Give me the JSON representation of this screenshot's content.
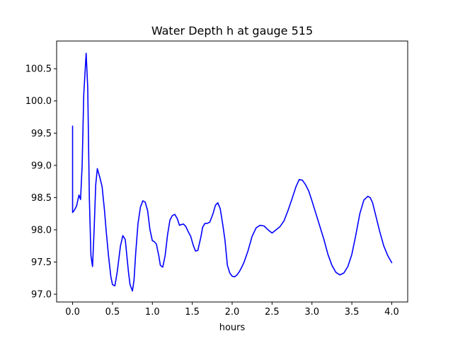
{
  "chart_data": {
    "type": "line",
    "title": "Water Depth h at gauge 515",
    "xlabel": "hours",
    "ylabel": "",
    "xlim": [
      -0.2,
      4.2
    ],
    "ylim": [
      96.88,
      100.93
    ],
    "grid": false,
    "legend": "none",
    "x_ticks": [
      0.0,
      0.5,
      1.0,
      1.5,
      2.0,
      2.5,
      3.0,
      3.5,
      4.0
    ],
    "x_tick_labels": [
      "0.0",
      "0.5",
      "1.0",
      "1.5",
      "2.0",
      "2.5",
      "3.0",
      "3.5",
      "4.0"
    ],
    "y_ticks": [
      97.0,
      97.5,
      98.0,
      98.5,
      99.0,
      99.5,
      100.0,
      100.5
    ],
    "y_tick_labels": [
      "97.0",
      "97.5",
      "98.0",
      "98.5",
      "99.0",
      "99.5",
      "100.0",
      "100.5"
    ],
    "colors": {
      "line": "#0000ff",
      "axes": "#000000",
      "background": "#ffffff"
    },
    "series": [
      {
        "x": [
          0.0,
          0.0,
          0.02,
          0.05,
          0.08,
          0.1,
          0.12,
          0.14,
          0.17,
          0.19,
          0.21,
          0.23,
          0.25,
          0.27,
          0.29,
          0.31,
          0.34,
          0.37,
          0.4,
          0.42,
          0.45,
          0.48,
          0.5,
          0.53,
          0.56,
          0.6,
          0.63,
          0.66,
          0.68,
          0.7,
          0.72,
          0.75,
          0.77,
          0.79,
          0.82,
          0.85,
          0.88,
          0.91,
          0.94,
          0.97,
          1.0,
          1.02,
          1.05,
          1.08,
          1.1,
          1.13,
          1.16,
          1.19,
          1.22,
          1.25,
          1.28,
          1.31,
          1.34,
          1.36,
          1.39,
          1.42,
          1.45,
          1.48,
          1.51,
          1.54,
          1.57,
          1.61,
          1.63,
          1.66,
          1.69,
          1.72,
          1.76,
          1.79,
          1.82,
          1.85,
          1.88,
          1.91,
          1.94,
          1.97,
          2.0,
          2.03,
          2.06,
          2.09,
          2.12,
          2.15,
          2.2,
          2.25,
          2.3,
          2.35,
          2.4,
          2.45,
          2.5,
          2.55,
          2.6,
          2.65,
          2.7,
          2.75,
          2.8,
          2.84,
          2.88,
          2.92,
          2.96,
          3.0,
          3.05,
          3.1,
          3.15,
          3.2,
          3.25,
          3.3,
          3.35,
          3.4,
          3.45,
          3.5,
          3.55,
          3.6,
          3.65,
          3.7,
          3.73,
          3.76,
          3.8,
          3.85,
          3.9,
          3.95,
          4.0
        ],
        "y": [
          99.61,
          98.27,
          98.3,
          98.37,
          98.54,
          98.47,
          99.0,
          100.1,
          100.74,
          100.2,
          98.5,
          97.6,
          97.43,
          98.0,
          98.7,
          98.95,
          98.82,
          98.67,
          98.3,
          98.0,
          97.6,
          97.27,
          97.15,
          97.13,
          97.35,
          97.75,
          97.91,
          97.85,
          97.6,
          97.35,
          97.15,
          97.05,
          97.22,
          97.62,
          98.1,
          98.35,
          98.45,
          98.43,
          98.3,
          98.0,
          97.83,
          97.82,
          97.78,
          97.6,
          97.45,
          97.42,
          97.6,
          97.92,
          98.15,
          98.22,
          98.24,
          98.18,
          98.07,
          98.08,
          98.09,
          98.05,
          97.97,
          97.9,
          97.77,
          97.67,
          97.68,
          97.9,
          98.04,
          98.1,
          98.1,
          98.12,
          98.25,
          98.38,
          98.42,
          98.33,
          98.1,
          97.84,
          97.45,
          97.33,
          97.28,
          97.27,
          97.3,
          97.35,
          97.42,
          97.5,
          97.68,
          97.9,
          98.03,
          98.07,
          98.06,
          98.0,
          97.95,
          98.0,
          98.05,
          98.14,
          98.3,
          98.48,
          98.67,
          98.78,
          98.77,
          98.7,
          98.6,
          98.45,
          98.25,
          98.05,
          97.85,
          97.62,
          97.45,
          97.34,
          97.3,
          97.33,
          97.43,
          97.62,
          97.92,
          98.25,
          98.46,
          98.52,
          98.5,
          98.42,
          98.22,
          97.97,
          97.75,
          97.6,
          97.49
        ]
      }
    ]
  }
}
